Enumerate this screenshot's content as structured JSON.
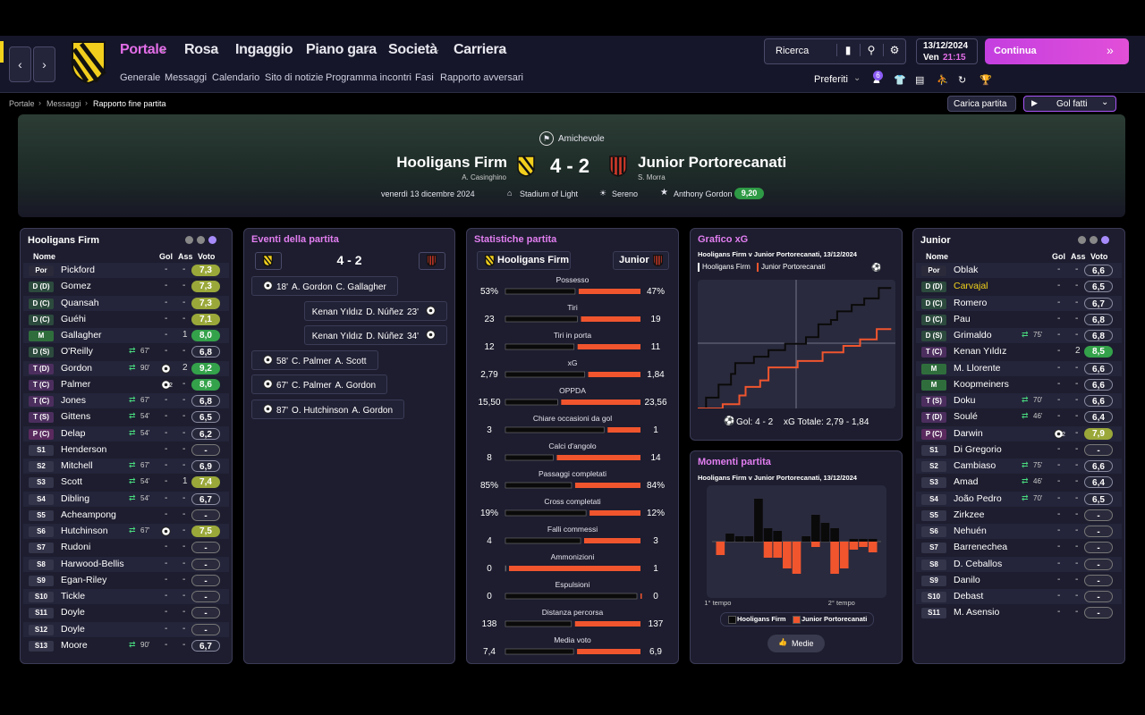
{
  "nav": {
    "menu": [
      "Portale",
      "Rosa",
      "Ingaggio",
      "Piano gara",
      "Società",
      "Carriera"
    ],
    "submenu": [
      "Generale",
      "Messaggi",
      "Calendario",
      "Sito di notizie",
      "Programma incontri",
      "Fasi",
      "Rapporto avversari"
    ],
    "search": "Ricerca",
    "date": "13/12/2024",
    "day": "Ven",
    "time": "21:15",
    "continue": "Continua",
    "favorites": "Preferiti",
    "badge": 6
  },
  "breadcrumb": [
    "Portale",
    "Messaggi",
    "Rapporto fine partita"
  ],
  "actions": [
    "Carica partita",
    "Gol fatti"
  ],
  "match": {
    "competition": "Amichevole",
    "home": {
      "name": "Hooligans Firm",
      "manager": "A. Casinghino"
    },
    "away": {
      "name": "Junior Portorecanati",
      "manager": "S. Morra"
    },
    "score": "4 - 2",
    "date": "venerdì 13 dicembre 2024",
    "stadium": "Stadium of Light",
    "weather": "Sereno",
    "potm": "Anthony Gordon",
    "potm_rating": "9,20"
  },
  "home_squad": {
    "title": "Hooligans Firm",
    "columns": [
      "Nome",
      "Gol",
      "Ass",
      "Voto"
    ],
    "players": [
      {
        "pos": "Por",
        "name": "Pickford",
        "gol": "-",
        "ass": "-",
        "voto": "7,3"
      },
      {
        "pos": "D (D)",
        "name": "Gomez",
        "gol": "-",
        "ass": "-",
        "voto": "7,3"
      },
      {
        "pos": "D (C)",
        "name": "Quansah",
        "gol": "-",
        "ass": "-",
        "voto": "7,3"
      },
      {
        "pos": "D (C)",
        "name": "Guéhi",
        "gol": "-",
        "ass": "-",
        "voto": "7,1"
      },
      {
        "pos": "M",
        "name": "Gallagher",
        "gol": "-",
        "ass": 1,
        "voto": "8,0"
      },
      {
        "pos": "D (S)",
        "name": "O'Reilly",
        "sub": "67'",
        "gol": "-",
        "ass": "-",
        "voto": "6,8"
      },
      {
        "pos": "T (D)",
        "name": "Gordon",
        "sub": "90'",
        "gol": 1,
        "ass": 2,
        "voto": "9,2"
      },
      {
        "pos": "T (C)",
        "name": "Palmer",
        "gol": 2,
        "ass": "-",
        "voto": "8,6"
      },
      {
        "pos": "T (C)",
        "name": "Jones",
        "sub": "67'",
        "gol": "-",
        "ass": "-",
        "voto": "6,8"
      },
      {
        "pos": "T (S)",
        "name": "Gittens",
        "sub": "54'",
        "gol": "-",
        "ass": "-",
        "voto": "6,5"
      },
      {
        "pos": "P (C)",
        "name": "Delap",
        "sub": "54'",
        "gol": "-",
        "ass": "-",
        "voto": "6,2"
      },
      {
        "pos": "S1",
        "name": "Henderson",
        "gol": "-",
        "ass": "-",
        "voto": "-"
      },
      {
        "pos": "S2",
        "name": "Mitchell",
        "sub": "67'",
        "gol": "-",
        "ass": "-",
        "voto": "6,9"
      },
      {
        "pos": "S3",
        "name": "Scott",
        "sub": "54'",
        "gol": "-",
        "ass": 1,
        "voto": "7,4"
      },
      {
        "pos": "S4",
        "name": "Dibling",
        "sub": "54'",
        "gol": "-",
        "ass": "-",
        "voto": "6,7"
      },
      {
        "pos": "S5",
        "name": "Acheampong",
        "gol": "-",
        "ass": "-",
        "voto": "-"
      },
      {
        "pos": "S6",
        "name": "Hutchinson",
        "sub": "67'",
        "gol": 1,
        "ass": "-",
        "voto": "7,5"
      },
      {
        "pos": "S7",
        "name": "Rudoni",
        "gol": "-",
        "ass": "-",
        "voto": "-"
      },
      {
        "pos": "S8",
        "name": "Harwood-Bellis",
        "gol": "-",
        "ass": "-",
        "voto": "-"
      },
      {
        "pos": "S9",
        "name": "Egan-Riley",
        "gol": "-",
        "ass": "-",
        "voto": "-"
      },
      {
        "pos": "S10",
        "name": "Tickle",
        "gol": "-",
        "ass": "-",
        "voto": "-"
      },
      {
        "pos": "S11",
        "name": "Doyle",
        "gol": "-",
        "ass": "-",
        "voto": "-"
      },
      {
        "pos": "S12",
        "name": "Doyle",
        "gol": "-",
        "ass": "-",
        "voto": "-"
      },
      {
        "pos": "S13",
        "name": "Moore",
        "sub": "90'",
        "gol": "-",
        "ass": "-",
        "voto": "6,7"
      }
    ]
  },
  "away_squad": {
    "title": "Junior",
    "columns": [
      "Nome",
      "Gol",
      "Ass",
      "Voto"
    ],
    "players": [
      {
        "pos": "Por",
        "name": "Oblak",
        "gol": "-",
        "ass": "-",
        "voto": "6,6"
      },
      {
        "pos": "D (D)",
        "name": "Carvajal",
        "highlight": true,
        "gol": "-",
        "ass": "-",
        "voto": "6,5"
      },
      {
        "pos": "D (C)",
        "name": "Romero",
        "gol": "-",
        "ass": "-",
        "voto": "6,7"
      },
      {
        "pos": "D (C)",
        "name": "Pau",
        "gol": "-",
        "ass": "-",
        "voto": "6,8"
      },
      {
        "pos": "D (S)",
        "name": "Grimaldo",
        "sub": "75'",
        "gol": "-",
        "ass": "-",
        "voto": "6,8"
      },
      {
        "pos": "T (C)",
        "name": "Kenan Yıldız",
        "gol": "-",
        "ass": 2,
        "voto": "8,5"
      },
      {
        "pos": "M",
        "name": "M. Llorente",
        "gol": "-",
        "ass": "-",
        "voto": "6,6"
      },
      {
        "pos": "M",
        "name": "Koopmeiners",
        "gol": "-",
        "ass": "-",
        "voto": "6,6"
      },
      {
        "pos": "T (S)",
        "name": "Doku",
        "sub": "70'",
        "gol": "-",
        "ass": "-",
        "voto": "6,6"
      },
      {
        "pos": "T (D)",
        "name": "Soulé",
        "sub": "46'",
        "gol": "-",
        "ass": "-",
        "voto": "6,4"
      },
      {
        "pos": "P (C)",
        "name": "Darwin",
        "gol": 2,
        "ass": "-",
        "voto": "7,9"
      },
      {
        "pos": "S1",
        "name": "Di Gregorio",
        "gol": "-",
        "ass": "-",
        "voto": "-"
      },
      {
        "pos": "S2",
        "name": "Cambiaso",
        "sub": "75'",
        "gol": "-",
        "ass": "-",
        "voto": "6,6"
      },
      {
        "pos": "S3",
        "name": "Amad",
        "sub": "46'",
        "gol": "-",
        "ass": "-",
        "voto": "6,4"
      },
      {
        "pos": "S4",
        "name": "João Pedro",
        "sub": "70'",
        "gol": "-",
        "ass": "-",
        "voto": "6,5"
      },
      {
        "pos": "S5",
        "name": "Zirkzee",
        "gol": "-",
        "ass": "-",
        "voto": "-"
      },
      {
        "pos": "S6",
        "name": "Nehuén",
        "gol": "-",
        "ass": "-",
        "voto": "-"
      },
      {
        "pos": "S7",
        "name": "Barrenechea",
        "gol": "-",
        "ass": "-",
        "voto": "-"
      },
      {
        "pos": "S8",
        "name": "D. Ceballos",
        "gol": "-",
        "ass": "-",
        "voto": "-"
      },
      {
        "pos": "S9",
        "name": "Danilo",
        "gol": "-",
        "ass": "-",
        "voto": "-"
      },
      {
        "pos": "S10",
        "name": "Debast",
        "gol": "-",
        "ass": "-",
        "voto": "-"
      },
      {
        "pos": "S11",
        "name": "M. Asensio",
        "gol": "-",
        "ass": "-",
        "voto": "-"
      }
    ]
  },
  "events": {
    "title": "Eventi della partita",
    "score": "4 - 2",
    "items": [
      {
        "side": "home",
        "minute": "18'",
        "scorer": "A. Gordon",
        "assist": "C. Gallagher"
      },
      {
        "side": "away",
        "minute": "23'",
        "scorer": "D. Núñez",
        "assist": "Kenan Yıldız"
      },
      {
        "side": "away",
        "minute": "34'",
        "scorer": "D. Núñez",
        "assist": "Kenan Yıldız"
      },
      {
        "side": "home",
        "minute": "58'",
        "scorer": "C. Palmer",
        "assist": "A. Scott"
      },
      {
        "side": "home",
        "minute": "67'",
        "scorer": "C. Palmer",
        "assist": "A. Gordon"
      },
      {
        "side": "home",
        "minute": "87'",
        "scorer": "O. Hutchinson",
        "assist": "A. Gordon"
      }
    ]
  },
  "stats": {
    "title": "Statistiche partita",
    "home": "Hooligans Firm",
    "away": "Junior",
    "rows": [
      {
        "label": "Possesso",
        "values": [
          53,
          47
        ],
        "value_labels": [
          "53%",
          "47%"
        ]
      },
      {
        "label": "Tiri",
        "values": [
          23,
          19
        ]
      },
      {
        "label": "Tiri in porta",
        "values": [
          12,
          11
        ]
      },
      {
        "label": "xG",
        "values": [
          2.79,
          1.84
        ],
        "value_labels": [
          "2,79",
          "1,84"
        ]
      },
      {
        "label": "OPPDA",
        "values": [
          15.5,
          23.56
        ],
        "value_labels": [
          "15,50",
          "23,56"
        ]
      },
      {
        "label": "Chiare occasioni da gol",
        "values": [
          3,
          1
        ]
      },
      {
        "label": "Calci d'angolo",
        "values": [
          8,
          14
        ]
      },
      {
        "label": "Passaggi completati",
        "values": [
          85,
          84
        ],
        "value_labels": [
          "85%",
          "84%"
        ]
      },
      {
        "label": "Cross completati",
        "values": [
          19,
          12
        ],
        "value_labels": [
          "19%",
          "12%"
        ]
      },
      {
        "label": "Falli commessi",
        "values": [
          4,
          3
        ]
      },
      {
        "label": "Ammonizioni",
        "values": [
          0,
          1
        ]
      },
      {
        "label": "Espulsioni",
        "values": [
          0,
          0
        ]
      },
      {
        "label": "Distanza percorsa",
        "values": [
          138,
          137
        ]
      },
      {
        "label": "Media voto",
        "values": [
          7.4,
          6.9
        ],
        "value_labels": [
          "7,4",
          "6,9"
        ]
      }
    ]
  },
  "chart_data": [
    {
      "type": "line",
      "title": "Grafico xG",
      "subtitle": "Hooligans Firm v Junior Portorecanati, 13/12/2024",
      "xlim": [
        0,
        95
      ],
      "ylim": [
        0,
        2.9
      ],
      "series": [
        {
          "name": "Hooligans Firm",
          "color": "#0a0a0a",
          "x": [
            0,
            4,
            4,
            10,
            10,
            16,
            16,
            18,
            18,
            27,
            27,
            34,
            34,
            42,
            42,
            52,
            52,
            58,
            58,
            64,
            64,
            67,
            67,
            74,
            74,
            80,
            80,
            87,
            87,
            93
          ],
          "values": [
            0,
            0,
            0.25,
            0.25,
            0.55,
            0.55,
            0.8,
            0.8,
            1.05,
            1.05,
            1.2,
            1.2,
            1.35,
            1.35,
            1.5,
            1.5,
            1.65,
            1.65,
            1.95,
            1.95,
            2.05,
            2.05,
            2.25,
            2.25,
            2.4,
            2.4,
            2.55,
            2.55,
            2.79,
            2.79
          ]
        },
        {
          "name": "Junior Portorecanati",
          "color": "#f0552e",
          "x": [
            0,
            12,
            12,
            20,
            20,
            23,
            23,
            30,
            30,
            34,
            34,
            48,
            48,
            60,
            60,
            70,
            70,
            78,
            78,
            86,
            86,
            93
          ],
          "values": [
            0,
            0,
            0.1,
            0.1,
            0.3,
            0.3,
            0.5,
            0.5,
            0.65,
            0.65,
            0.95,
            0.95,
            1.1,
            1.1,
            1.3,
            1.3,
            1.45,
            1.45,
            1.6,
            1.6,
            1.84,
            1.84
          ]
        }
      ],
      "footer": [
        "Gol: 4 - 2",
        "xG Totale: 2,79 - 1,84"
      ]
    },
    {
      "type": "bar",
      "title": "Momenti partita",
      "subtitle": "Hooligans Firm v Junior Portorecanati, 13/12/2024",
      "categories": [
        "1° tempo",
        null,
        null,
        null,
        null,
        null,
        null,
        null,
        null,
        null,
        null,
        null,
        null,
        "2° tempo",
        null,
        null,
        null
      ],
      "ylim": [
        -1,
        1
      ],
      "series": [
        {
          "name": "Hooligans Firm",
          "color": "#0a0a0a",
          "values": [
            0,
            0.15,
            0.1,
            0.1,
            0.8,
            0.25,
            0.2,
            0,
            0,
            0.1,
            0.5,
            0.35,
            0.25,
            0,
            0.05,
            0.05,
            0.05
          ]
        },
        {
          "name": "Junior Portorecanati",
          "color": "#f0552e",
          "values": [
            -0.25,
            0,
            0,
            0,
            0,
            -0.3,
            -0.3,
            -0.5,
            -0.6,
            0,
            -0.1,
            0,
            -0.6,
            -0.5,
            -0.15,
            -0.1,
            -0.2
          ]
        }
      ],
      "button": "Medie"
    }
  ]
}
